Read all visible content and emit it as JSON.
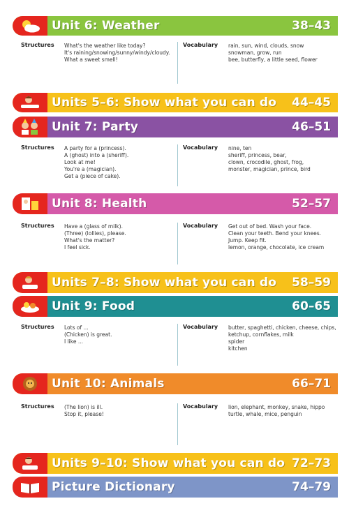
{
  "units": [
    {
      "title": "Unit 6: Weather",
      "pages": "38–43",
      "structures_label": "Structures",
      "structures": [
        "What's the weather like today?",
        "It's raining/snowing/sunny/windy/cloudy.",
        "What a sweet smell!"
      ],
      "vocabulary_label": "Vocabulary",
      "vocabulary": [
        "rain, sun, wind, clouds, snow",
        "snowman, grow, run",
        "bee, butterfly, a little seed, flower"
      ]
    },
    {
      "title": "Unit 7: Party",
      "pages": "46–51",
      "structures_label": "Structures",
      "structures": [
        "A party for a (princess).",
        "A (ghost) into a (sheriff).",
        "Look at me!",
        "You're a (magician).",
        "Get a (piece of cake)."
      ],
      "vocabulary_label": "Vocabulary",
      "vocabulary": [
        "nine, ten",
        "sheriff, princess, bear,",
        "clown, crocodile, ghost, frog,",
        "monster, magician, prince, bird"
      ]
    },
    {
      "title": "Unit 8: Health",
      "pages": "52–57",
      "structures_label": "Structures",
      "structures": [
        "Have a (glass of milk).",
        "(Three) (lollies), please.",
        "What's the matter?",
        "I feel sick."
      ],
      "vocabulary_label": "Vocabulary",
      "vocabulary": [
        "Get out of bed. Wash your face.",
        "Clean your teeth. Bend your knees.",
        "Jump. Keep fit.",
        "lemon, orange, chocolate, ice cream"
      ]
    },
    {
      "title": "Unit 9: Food",
      "pages": "60–65",
      "structures_label": "Structures",
      "structures": [
        "Lots of ...",
        "(Chicken) is great.",
        "I like ..."
      ],
      "vocabulary_label": "Vocabulary",
      "vocabulary": [
        "butter, spaghetti, chicken, cheese, chips,",
        "ketchup, cornflakes, milk",
        "spider",
        "kitchen"
      ]
    },
    {
      "title": "Unit 10: Animals",
      "pages": "66–71",
      "structures_label": "Structures",
      "structures": [
        "(The lion) is ill.",
        "Stop it, please!"
      ],
      "vocabulary_label": "Vocabulary",
      "vocabulary": [
        "lion, elephant, monkey, snake, hippo",
        "turtle, whale, mice, penguin"
      ]
    }
  ],
  "reviews": [
    {
      "title": "Units 5–6: Show what you can do",
      "pages": "44–45"
    },
    {
      "title": "Units 7–8: Show what you can do",
      "pages": "58–59"
    },
    {
      "title": "Units 9–10: Show what you can do",
      "pages": "72–73"
    },
    {
      "title": "Picture Dictionary",
      "pages": "74–79"
    }
  ],
  "colors": {
    "weather": "#8ac53f",
    "review": "#f7c11a",
    "party": "#8a52a3",
    "health": "#d55aa9",
    "food": "#1f8f92",
    "animals": "#f08b2a",
    "dictionary": "#7e95c8",
    "badge": "#e5261e"
  },
  "icons": [
    "cloud-sun-icon",
    "girl-table-icon",
    "party-children-icon",
    "bathroom-icon",
    "girl-reading-icon",
    "food-icon",
    "lion-icon",
    "boy-reading-icon",
    "book-icon"
  ]
}
